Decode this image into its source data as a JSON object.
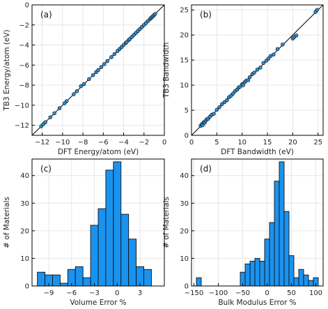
{
  "chart_data": [
    {
      "id": "a",
      "type": "scatter",
      "panel_label": "(a)",
      "xlabel": "DFT Energy/atom (eV)",
      "ylabel": "TB3 Energy/atom (eV)",
      "xlim": [
        -13,
        0
      ],
      "ylim": [
        -13,
        0
      ],
      "xticks": [
        -12,
        -10,
        -8,
        -6,
        -4,
        -2,
        0
      ],
      "yticks": [
        -12,
        -10,
        -8,
        -6,
        -4,
        -2,
        0
      ],
      "grid": true,
      "identity_line": true,
      "points": [
        [
          -12.1,
          -12.1
        ],
        [
          -11.9,
          -11.9
        ],
        [
          -11.7,
          -11.7
        ],
        [
          -11.2,
          -11.2
        ],
        [
          -10.8,
          -10.8
        ],
        [
          -10.3,
          -10.3
        ],
        [
          -9.8,
          -9.8
        ],
        [
          -9.6,
          -9.6
        ],
        [
          -8.9,
          -8.9
        ],
        [
          -8.6,
          -8.6
        ],
        [
          -8.2,
          -8.1
        ],
        [
          -7.9,
          -7.9
        ],
        [
          -7.4,
          -7.4
        ],
        [
          -7.0,
          -7.0
        ],
        [
          -6.7,
          -6.7
        ],
        [
          -6.5,
          -6.5
        ],
        [
          -6.2,
          -6.2
        ],
        [
          -5.9,
          -5.9
        ],
        [
          -5.6,
          -5.6
        ],
        [
          -5.2,
          -5.2
        ],
        [
          -4.9,
          -4.9
        ],
        [
          -4.6,
          -4.6
        ],
        [
          -4.4,
          -4.4
        ],
        [
          -4.2,
          -4.2
        ],
        [
          -4.0,
          -4.0
        ],
        [
          -3.8,
          -3.8
        ],
        [
          -3.7,
          -3.7
        ],
        [
          -3.5,
          -3.5
        ],
        [
          -3.4,
          -3.4
        ],
        [
          -3.2,
          -3.2
        ],
        [
          -3.0,
          -3.0
        ],
        [
          -2.8,
          -2.8
        ],
        [
          -2.6,
          -2.6
        ],
        [
          -2.4,
          -2.4
        ],
        [
          -2.2,
          -2.2
        ],
        [
          -2.0,
          -2.0
        ],
        [
          -1.8,
          -1.8
        ],
        [
          -1.6,
          -1.6
        ],
        [
          -1.4,
          -1.4
        ],
        [
          -1.3,
          -1.3
        ],
        [
          -1.2,
          -1.2
        ],
        [
          -1.1,
          -1.1
        ],
        [
          -1.0,
          -1.0
        ],
        [
          -0.9,
          -0.9
        ]
      ]
    },
    {
      "id": "b",
      "type": "scatter",
      "panel_label": "(b)",
      "xlabel": "DFT Bandwidth (eV)",
      "ylabel": "TB3 Bandwidth",
      "xlim": [
        0,
        26
      ],
      "ylim": [
        0,
        26
      ],
      "xticks": [
        0,
        5,
        10,
        15,
        20,
        25
      ],
      "yticks": [
        0,
        5,
        10,
        15,
        20,
        25
      ],
      "grid": true,
      "identity_line": true,
      "points": [
        [
          1.8,
          1.9
        ],
        [
          2.0,
          2.2
        ],
        [
          2.2,
          2.0
        ],
        [
          2.4,
          2.6
        ],
        [
          2.6,
          2.5
        ],
        [
          2.8,
          2.9
        ],
        [
          3.0,
          3.2
        ],
        [
          3.3,
          3.3
        ],
        [
          3.6,
          3.7
        ],
        [
          4.0,
          4.1
        ],
        [
          4.4,
          4.3
        ],
        [
          5.0,
          5.1
        ],
        [
          5.5,
          5.6
        ],
        [
          6.0,
          6.2
        ],
        [
          6.5,
          6.6
        ],
        [
          7.0,
          7.0
        ],
        [
          7.4,
          7.6
        ],
        [
          7.8,
          7.9
        ],
        [
          8.2,
          8.3
        ],
        [
          8.6,
          8.8
        ],
        [
          9.0,
          9.1
        ],
        [
          9.3,
          9.5
        ],
        [
          9.6,
          9.7
        ],
        [
          10.0,
          10.2
        ],
        [
          10.2,
          10.0
        ],
        [
          10.5,
          10.6
        ],
        [
          10.8,
          10.9
        ],
        [
          11.2,
          11.0
        ],
        [
          11.5,
          11.6
        ],
        [
          12.0,
          12.2
        ],
        [
          12.4,
          12.5
        ],
        [
          13.0,
          13.1
        ],
        [
          13.6,
          13.5
        ],
        [
          14.2,
          14.4
        ],
        [
          14.8,
          14.9
        ],
        [
          15.2,
          15.3
        ],
        [
          15.6,
          15.8
        ],
        [
          16.2,
          16.1
        ],
        [
          17.0,
          17.2
        ],
        [
          18.0,
          18.1
        ],
        [
          20.0,
          19.3
        ],
        [
          20.3,
          19.6
        ],
        [
          20.7,
          19.9
        ],
        [
          24.5,
          24.6
        ],
        [
          24.8,
          25.0
        ]
      ]
    },
    {
      "id": "c",
      "type": "bar",
      "panel_label": "(c)",
      "xlabel": "Volume Error %",
      "ylabel": "# of Materials",
      "xlim": [
        -11.2,
        6.2
      ],
      "ylim": [
        0,
        46
      ],
      "xticks": [
        -9,
        -6,
        -3,
        0,
        3
      ],
      "yticks": [
        0,
        10,
        20,
        30,
        40
      ],
      "grid": true,
      "bin_width": 1,
      "bin_start": -10.5,
      "values": [
        5,
        4,
        4,
        1,
        6,
        7,
        3,
        22,
        28,
        42,
        45,
        26,
        17,
        7,
        6
      ]
    },
    {
      "id": "d",
      "type": "bar",
      "panel_label": "(d)",
      "xlabel": "Bulk Modulus Error %",
      "ylabel": "# of Materials",
      "xlim": [
        -155,
        115
      ],
      "ylim": [
        0,
        46
      ],
      "xticks": [
        -150,
        -100,
        -50,
        0,
        50,
        100
      ],
      "yticks": [
        0,
        10,
        20,
        30,
        40
      ],
      "grid": true,
      "bin_width": 10,
      "bin_start": -145,
      "values": [
        3,
        0,
        0,
        0,
        0,
        0,
        0,
        0,
        0,
        5,
        8,
        9,
        10,
        9,
        17,
        23,
        38,
        45,
        27,
        11,
        3,
        6,
        4,
        2,
        3
      ]
    }
  ],
  "colors": {
    "point_fill": "#2c8fd8",
    "bar_fill": "#1a93f0",
    "edge": "#111111",
    "grid": "#e6e6e6",
    "identity_line": "#000000"
  }
}
